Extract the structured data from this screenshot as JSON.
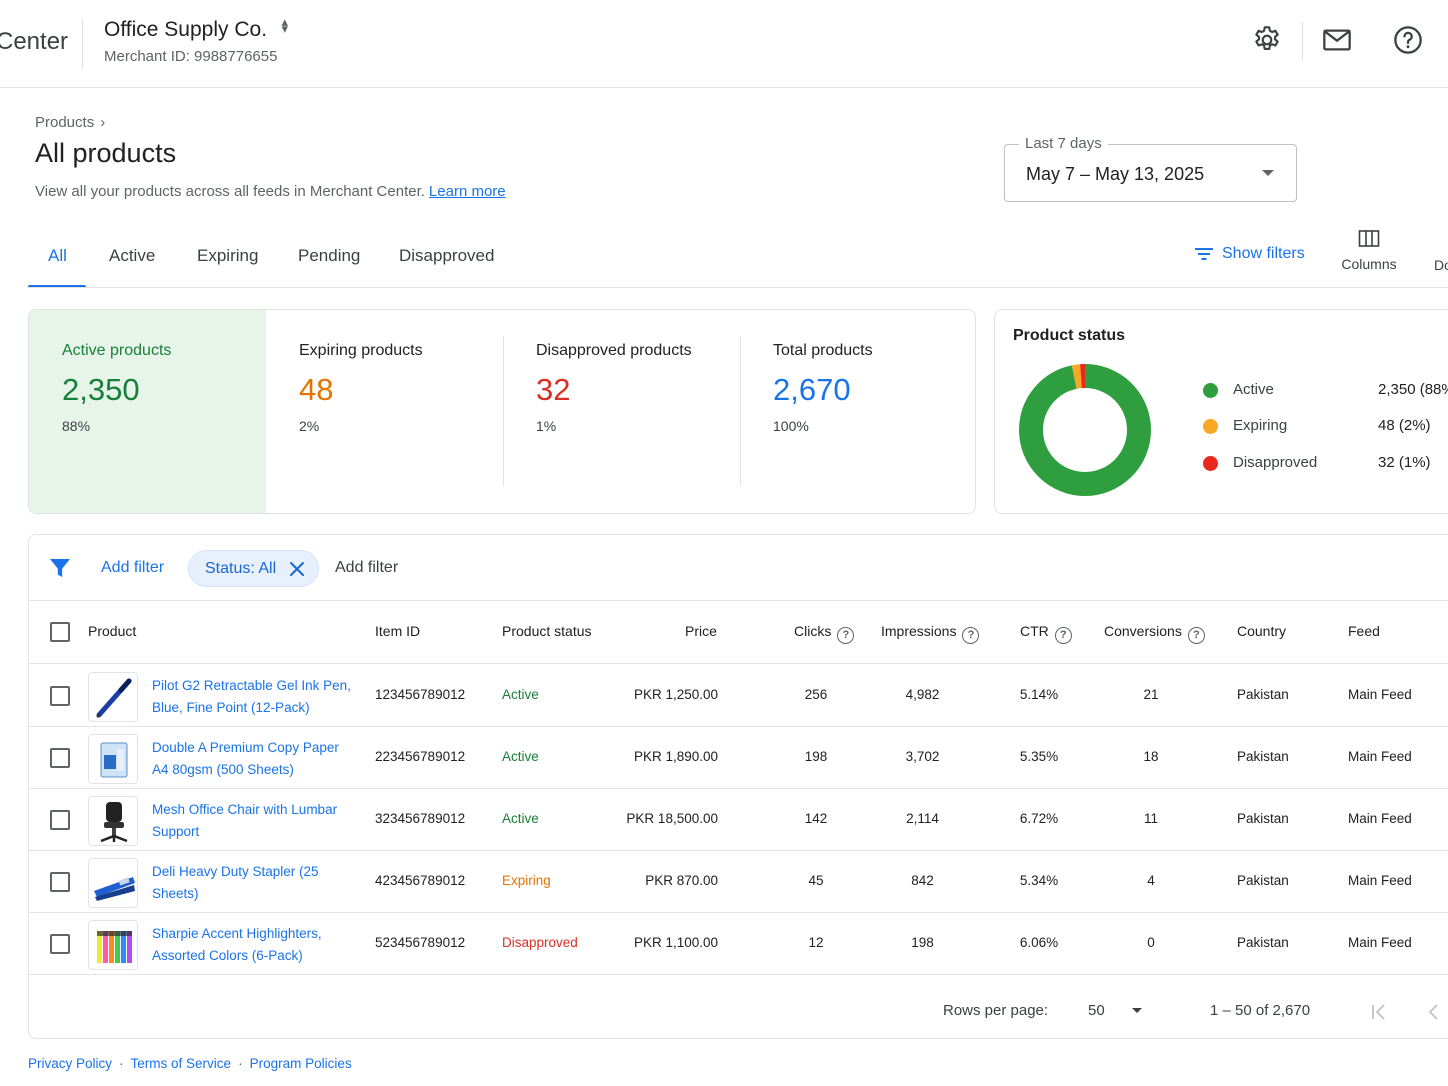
{
  "header": {
    "brand": "Center",
    "account_name": "Office Supply Co.",
    "merchant_id": "Merchant ID: 9988776655",
    "icons": [
      "gear-icon",
      "mail-icon",
      "help-icon"
    ]
  },
  "page": {
    "breadcrumb": "Products",
    "title": "All products",
    "description": "View all your products across all feeds in Merchant Center.",
    "learn_more": "Learn more"
  },
  "date_range": {
    "label": "Last 7 days",
    "value": "May 7 – May 13, 2025"
  },
  "tabs": [
    {
      "label": "All",
      "active": true
    },
    {
      "label": "Active",
      "active": false
    },
    {
      "label": "Expiring",
      "active": false
    },
    {
      "label": "Pending",
      "active": false
    },
    {
      "label": "Disapproved",
      "active": false
    }
  ],
  "toolbar": {
    "show_filters": "Show filters",
    "columns": "Columns",
    "download": "Do"
  },
  "metrics": [
    {
      "label": "Active products",
      "value": "2,350",
      "pct": "88%",
      "color": "#188038"
    },
    {
      "label": "Expiring products",
      "value": "48",
      "pct": "2%",
      "color": "#e37400"
    },
    {
      "label": "Disapproved products",
      "value": "32",
      "pct": "1%",
      "color": "#d93025"
    },
    {
      "label": "Total products",
      "value": "2,670",
      "pct": "100%",
      "color": "#1a73e8"
    }
  ],
  "product_status": {
    "title": "Product status",
    "items": [
      {
        "name": "Active",
        "value": "2,350 (88%",
        "count": 2350,
        "color": "#2e9e3e"
      },
      {
        "name": "Expiring",
        "value": "48 (2%)",
        "count": 48,
        "color": "#f9a825"
      },
      {
        "name": "Disapproved",
        "value": "32 (1%)",
        "count": 32,
        "color": "#e8291c"
      }
    ]
  },
  "filters": {
    "add_filter": "Add filter",
    "chip": "Status: All",
    "add_filter_2": "Add filter"
  },
  "table": {
    "columns": {
      "product": "Product",
      "item_id": "Item ID",
      "status": "Product status",
      "price": "Price",
      "clicks": "Clicks",
      "impressions": "Impressions",
      "ctr": "CTR",
      "conversions": "Conversions",
      "country": "Country",
      "feed": "Feed"
    },
    "status_colors": {
      "Active": "#188038",
      "Expiring": "#e37400",
      "Disapproved": "#d93025"
    },
    "rows": [
      {
        "name": "Pilot G2 Retractable Gel Ink Pen, Blue, Fine Point (12-Pack)",
        "thumb": "pen",
        "item_id": "123456789012",
        "status": "Active",
        "price": "PKR 1,250.00",
        "clicks": "256",
        "impressions": "4,982",
        "ctr": "5.14%",
        "conversions": "21",
        "country": "Pakistan",
        "feed": "Main Feed"
      },
      {
        "name": "Double A Premium Copy Paper A4 80gsm (500 Sheets)",
        "thumb": "paper",
        "item_id": "223456789012",
        "status": "Active",
        "price": "PKR 1,890.00",
        "clicks": "198",
        "impressions": "3,702",
        "ctr": "5.35%",
        "conversions": "18",
        "country": "Pakistan",
        "feed": "Main Feed"
      },
      {
        "name": "Mesh Office Chair with Lumbar Support",
        "thumb": "chair",
        "item_id": "323456789012",
        "status": "Active",
        "price": "PKR 18,500.00",
        "clicks": "142",
        "impressions": "2,114",
        "ctr": "6.72%",
        "conversions": "11",
        "country": "Pakistan",
        "feed": "Main Feed"
      },
      {
        "name": "Deli Heavy Duty Stapler (25 Sheets)",
        "thumb": "stapler",
        "item_id": "423456789012",
        "status": "Expiring",
        "price": "PKR 870.00",
        "clicks": "45",
        "impressions": "842",
        "ctr": "5.34%",
        "conversions": "4",
        "country": "Pakistan",
        "feed": "Main Feed"
      },
      {
        "name": "Sharpie Accent Highlighters, Assorted Colors (6-Pack)",
        "thumb": "highlighters",
        "item_id": "523456789012",
        "status": "Disapproved",
        "price": "PKR 1,100.00",
        "clicks": "12",
        "impressions": "198",
        "ctr": "6.06%",
        "conversions": "0",
        "country": "Pakistan",
        "feed": "Main Feed"
      }
    ]
  },
  "pagination": {
    "rows_per_page_label": "Rows per page:",
    "rows_per_page": "50",
    "range": "1 – 50 of 2,670"
  },
  "footer": {
    "links": [
      "Privacy Policy",
      "Terms of Service",
      "Program Policies"
    ]
  }
}
